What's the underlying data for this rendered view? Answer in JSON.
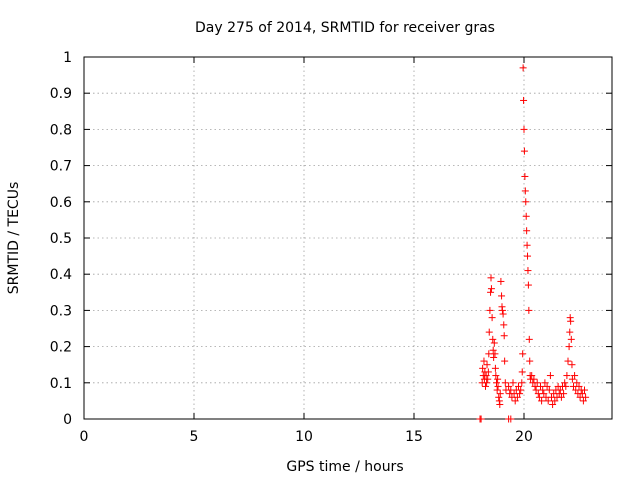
{
  "chart_data": {
    "type": "scatter",
    "title": "Day 275 of 2014, SRMTID for receiver gras",
    "xlabel": "GPS time / hours",
    "ylabel": "SRMTID / TECUs",
    "xlim": [
      0,
      24
    ],
    "ylim": [
      0,
      1
    ],
    "xticks": [
      "0",
      "5",
      "10",
      "15",
      "20"
    ],
    "xtick_values": [
      0,
      5,
      10,
      15,
      20
    ],
    "yticks": [
      "0",
      "0.1",
      "0.2",
      "0.3",
      "0.4",
      "0.5",
      "0.6",
      "0.7",
      "0.8",
      "0.9",
      "1"
    ],
    "ytick_values": [
      0,
      0.1,
      0.2,
      0.3,
      0.4,
      0.5,
      0.6,
      0.7,
      0.8,
      0.9,
      1.0
    ],
    "grid": true,
    "marker": "+",
    "colors": {
      "series": "#ff0000",
      "grid": "#a0a0a0",
      "axis": "#000000"
    },
    "series": [
      {
        "name": "SRMTID",
        "points": [
          [
            18.0,
            0.0
          ],
          [
            18.05,
            0.0
          ],
          [
            19.3,
            0.0
          ],
          [
            19.4,
            0.0
          ],
          [
            18.1,
            0.1
          ],
          [
            18.12,
            0.14
          ],
          [
            18.15,
            0.12
          ],
          [
            18.18,
            0.16
          ],
          [
            18.2,
            0.11
          ],
          [
            18.22,
            0.13
          ],
          [
            18.25,
            0.09
          ],
          [
            18.28,
            0.12
          ],
          [
            18.3,
            0.1
          ],
          [
            18.32,
            0.15
          ],
          [
            18.35,
            0.11
          ],
          [
            18.38,
            0.13
          ],
          [
            18.4,
            0.18
          ],
          [
            18.42,
            0.24
          ],
          [
            18.45,
            0.3
          ],
          [
            18.48,
            0.35
          ],
          [
            18.5,
            0.39
          ],
          [
            18.52,
            0.36
          ],
          [
            18.55,
            0.28
          ],
          [
            18.58,
            0.22
          ],
          [
            18.6,
            0.19
          ],
          [
            18.62,
            0.17
          ],
          [
            18.65,
            0.21
          ],
          [
            18.68,
            0.18
          ],
          [
            18.7,
            0.14
          ],
          [
            18.72,
            0.12
          ],
          [
            18.75,
            0.1
          ],
          [
            18.78,
            0.08
          ],
          [
            18.8,
            0.11
          ],
          [
            18.82,
            0.09
          ],
          [
            18.85,
            0.06
          ],
          [
            18.88,
            0.05
          ],
          [
            18.9,
            0.04
          ],
          [
            18.92,
            0.07
          ],
          [
            18.95,
            0.38
          ],
          [
            18.98,
            0.34
          ],
          [
            19.0,
            0.31
          ],
          [
            19.02,
            0.3
          ],
          [
            19.05,
            0.29
          ],
          [
            19.08,
            0.26
          ],
          [
            19.1,
            0.23
          ],
          [
            19.12,
            0.16
          ],
          [
            19.15,
            0.1
          ],
          [
            19.18,
            0.08
          ],
          [
            19.3,
            0.09
          ],
          [
            19.35,
            0.07
          ],
          [
            19.4,
            0.08
          ],
          [
            19.45,
            0.06
          ],
          [
            19.5,
            0.1
          ],
          [
            19.55,
            0.07
          ],
          [
            19.6,
            0.05
          ],
          [
            19.65,
            0.08
          ],
          [
            19.7,
            0.06
          ],
          [
            19.75,
            0.09
          ],
          [
            19.8,
            0.07
          ],
          [
            19.85,
            0.08
          ],
          [
            19.9,
            0.1
          ],
          [
            19.92,
            0.13
          ],
          [
            19.94,
            0.18
          ],
          [
            19.96,
            0.97
          ],
          [
            19.98,
            0.88
          ],
          [
            20.0,
            0.8
          ],
          [
            20.02,
            0.74
          ],
          [
            20.04,
            0.67
          ],
          [
            20.06,
            0.63
          ],
          [
            20.08,
            0.6
          ],
          [
            20.1,
            0.56
          ],
          [
            20.12,
            0.52
          ],
          [
            20.14,
            0.48
          ],
          [
            20.16,
            0.45
          ],
          [
            20.18,
            0.41
          ],
          [
            20.2,
            0.37
          ],
          [
            20.22,
            0.3
          ],
          [
            20.24,
            0.22
          ],
          [
            20.26,
            0.16
          ],
          [
            20.28,
            0.12
          ],
          [
            20.3,
            0.11
          ],
          [
            20.35,
            0.12
          ],
          [
            20.4,
            0.1
          ],
          [
            20.45,
            0.11
          ],
          [
            20.5,
            0.09
          ],
          [
            20.55,
            0.08
          ],
          [
            20.6,
            0.1
          ],
          [
            20.65,
            0.07
          ],
          [
            20.7,
            0.06
          ],
          [
            20.75,
            0.09
          ],
          [
            20.8,
            0.05
          ],
          [
            20.85,
            0.08
          ],
          [
            20.9,
            0.07
          ],
          [
            20.95,
            0.1
          ],
          [
            21.0,
            0.06
          ],
          [
            21.05,
            0.09
          ],
          [
            21.1,
            0.05
          ],
          [
            21.15,
            0.08
          ],
          [
            21.2,
            0.12
          ],
          [
            21.25,
            0.06
          ],
          [
            21.3,
            0.04
          ],
          [
            21.35,
            0.07
          ],
          [
            21.4,
            0.05
          ],
          [
            21.45,
            0.08
          ],
          [
            21.5,
            0.06
          ],
          [
            21.55,
            0.09
          ],
          [
            21.6,
            0.07
          ],
          [
            21.65,
            0.08
          ],
          [
            21.7,
            0.06
          ],
          [
            21.75,
            0.09
          ],
          [
            21.8,
            0.07
          ],
          [
            21.85,
            0.1
          ],
          [
            21.9,
            0.09
          ],
          [
            21.95,
            0.12
          ],
          [
            22.0,
            0.16
          ],
          [
            22.05,
            0.2
          ],
          [
            22.08,
            0.24
          ],
          [
            22.1,
            0.28
          ],
          [
            22.12,
            0.27
          ],
          [
            22.15,
            0.22
          ],
          [
            22.18,
            0.15
          ],
          [
            22.2,
            0.11
          ],
          [
            22.25,
            0.09
          ],
          [
            22.3,
            0.12
          ],
          [
            22.35,
            0.08
          ],
          [
            22.4,
            0.1
          ],
          [
            22.45,
            0.07
          ],
          [
            22.5,
            0.09
          ],
          [
            22.55,
            0.06
          ],
          [
            22.6,
            0.08
          ],
          [
            22.65,
            0.07
          ],
          [
            22.7,
            0.05
          ],
          [
            22.75,
            0.08
          ],
          [
            22.8,
            0.06
          ]
        ]
      }
    ]
  }
}
